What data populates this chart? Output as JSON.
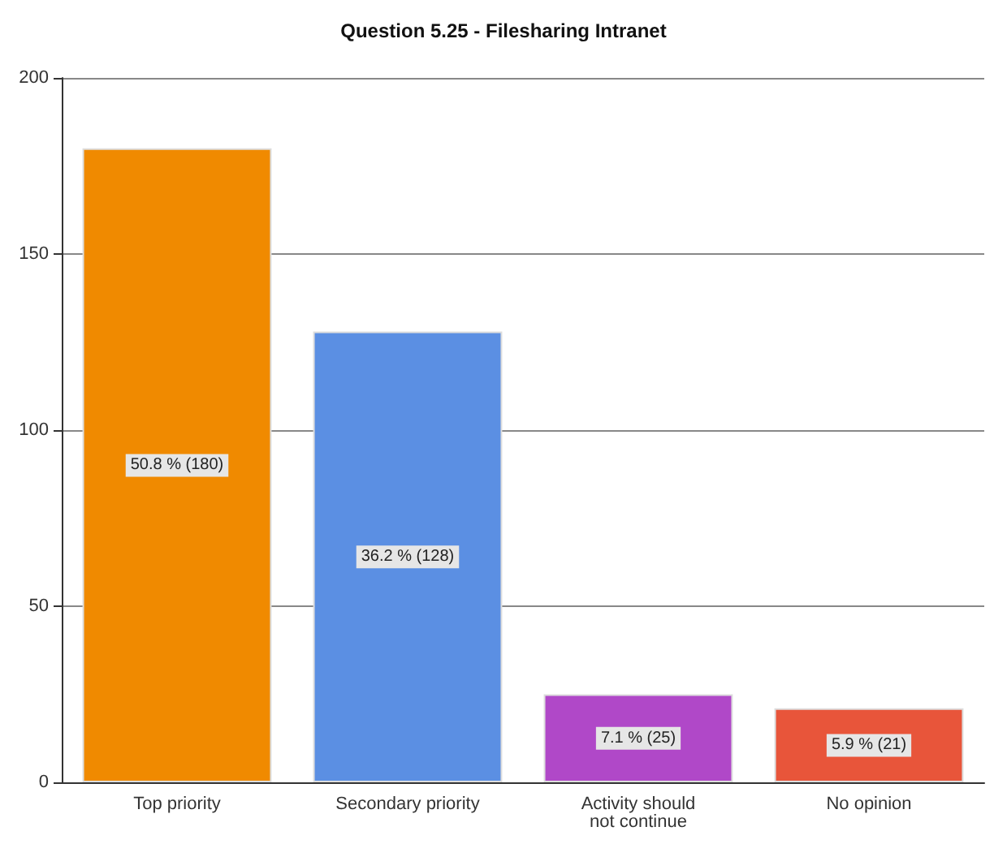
{
  "chart_data": {
    "type": "bar",
    "title": "Question 5.25 - Filesharing Intranet",
    "categories": [
      "Top priority",
      "Secondary priority",
      "Activity should\nnot continue",
      "No opinion"
    ],
    "values": [
      180,
      128,
      25,
      21
    ],
    "colors": [
      "#f08a00",
      "#5b8fe3",
      "#b048c8",
      "#e8553a"
    ],
    "value_labels": [
      "50.8 % (180)",
      "36.2 % (128)",
      "7.1 % (25)",
      "5.9 % (21)"
    ],
    "ylim": [
      0,
      200
    ],
    "yticks": [
      0,
      50,
      100,
      150,
      200
    ],
    "grid": "y"
  }
}
